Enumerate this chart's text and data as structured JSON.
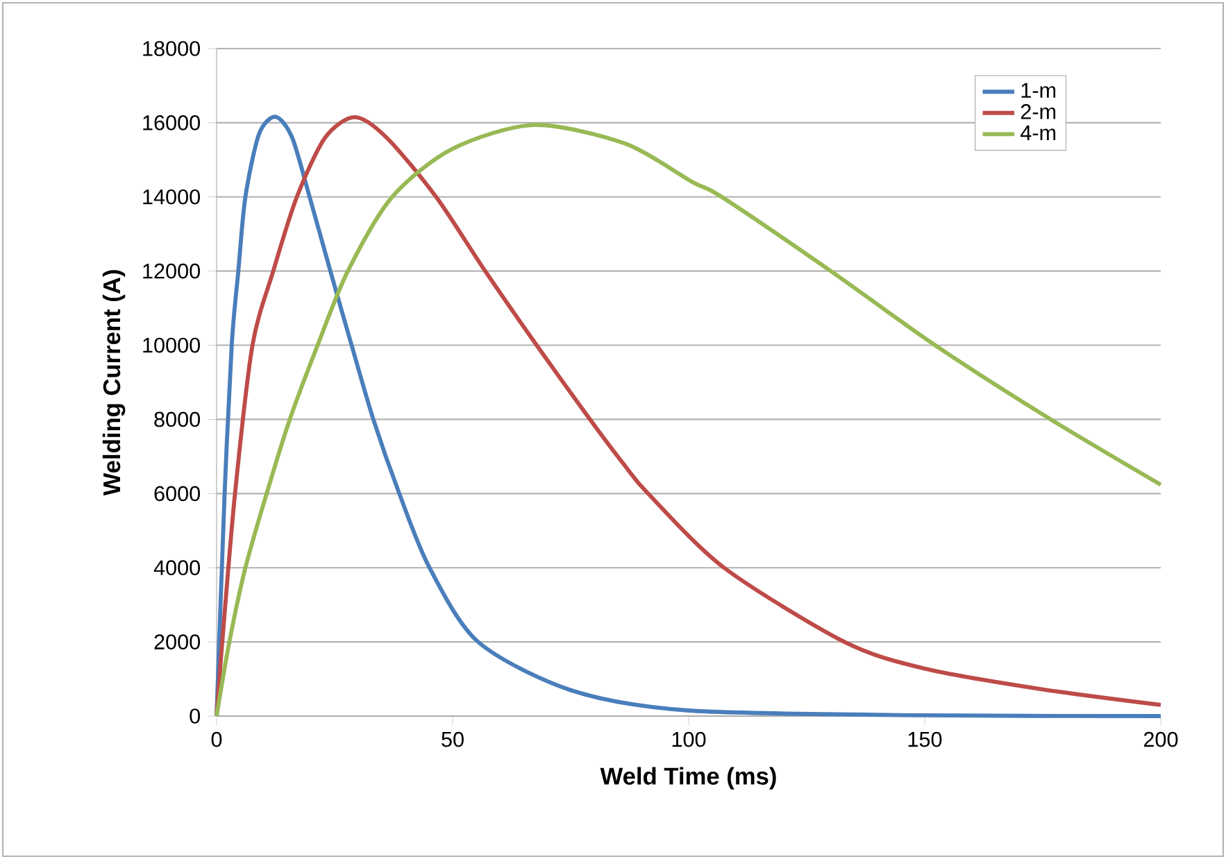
{
  "chart_data": {
    "type": "line",
    "xlabel": "Weld Time (ms)",
    "ylabel": "Welding Current (A)",
    "xlim": [
      0,
      200
    ],
    "xticks": [
      0,
      50,
      100,
      150,
      200
    ],
    "ylim": [
      0,
      18000
    ],
    "yticks": [
      0,
      2000,
      4000,
      6000,
      8000,
      10000,
      12000,
      14000,
      16000,
      18000
    ],
    "grid": "y",
    "legend": "top right",
    "marker": "none",
    "line_style": "solid",
    "series": [
      {
        "name": "1-m",
        "color": "#4a7ebb",
        "x": [
          0,
          1.7,
          3.2,
          4.6,
          6.1,
          9,
          12.5,
          16,
          19.7,
          24.1,
          28.6,
          33.2,
          38.7,
          45.1,
          55.4,
          75,
          100,
          150,
          200
        ],
        "values": [
          0,
          6000,
          10000,
          12000,
          14000,
          15700,
          16160,
          15600,
          14000,
          12000,
          10000,
          8000,
          6000,
          4000,
          2000,
          700,
          150,
          20,
          0
        ]
      },
      {
        "name": "2-m",
        "color": "#be4b48",
        "x": [
          0,
          1.2,
          3.9,
          7.6,
          12,
          17,
          23,
          29.3,
          36,
          46.5,
          56.9,
          67.8,
          79.1,
          86.5,
          91.4,
          107.5,
          133,
          150,
          175,
          200
        ],
        "values": [
          0,
          2000,
          6000,
          10000,
          12000,
          14000,
          15600,
          16150,
          15600,
          14000,
          12000,
          10000,
          8000,
          6750,
          6000,
          4000,
          2000,
          1280,
          720,
          300
        ]
      },
      {
        "name": "4-m",
        "color": "#98b954",
        "x": [
          0,
          2.7,
          6.1,
          10.6,
          15.5,
          21.4,
          27.8,
          37.2,
          50,
          67.3,
          86.5,
          100.8,
          107,
          130.1,
          152.2,
          176.7,
          200
        ],
        "values": [
          0,
          2000,
          4000,
          6000,
          8000,
          10000,
          12000,
          14000,
          15300,
          15940,
          15440,
          14400,
          14000,
          12000,
          10000,
          8000,
          6240
        ]
      }
    ]
  }
}
